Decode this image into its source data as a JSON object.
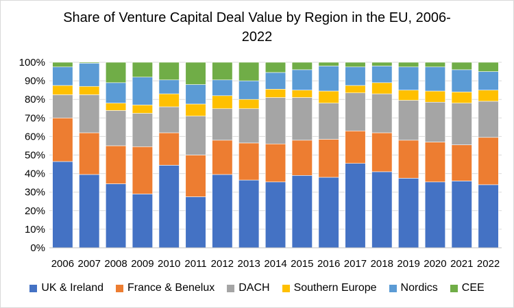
{
  "chart_data": {
    "type": "bar",
    "stacked": true,
    "title_line1": "Share of Venture Capital Deal Value by Region in the EU, 2006-",
    "title_line2": "2022",
    "xlabel": "",
    "ylabel": "",
    "ylim": [
      0,
      100
    ],
    "yticks": [
      "0%",
      "10%",
      "20%",
      "30%",
      "40%",
      "50%",
      "60%",
      "70%",
      "80%",
      "90%",
      "100%"
    ],
    "grid": true,
    "legend_position": "bottom",
    "categories": [
      "2006",
      "2007",
      "2008",
      "2009",
      "2010",
      "2011",
      "2012",
      "2013",
      "2014",
      "2015",
      "2016",
      "2017",
      "2018",
      "2019",
      "2020",
      "2021",
      "2022"
    ],
    "series": [
      {
        "name": "UK & Ireland",
        "color": "#4472C4",
        "values": [
          46.5,
          39.5,
          34.5,
          29,
          44.5,
          27.5,
          39.5,
          36.5,
          35.5,
          39,
          38,
          45.5,
          41,
          37.5,
          35.5,
          36,
          34
        ]
      },
      {
        "name": "France & Benelux",
        "color": "#ED7D31",
        "values": [
          23.5,
          22.5,
          20.5,
          25.5,
          17.5,
          22.5,
          18.5,
          20,
          20.5,
          19,
          20.5,
          17.5,
          21,
          20.5,
          21.5,
          19.5,
          25.5
        ]
      },
      {
        "name": "DACH",
        "color": "#A5A5A5",
        "values": [
          12.5,
          20.5,
          19,
          18,
          14,
          21,
          17,
          18.5,
          25,
          23,
          19.5,
          20.5,
          21,
          21.5,
          21.5,
          22.5,
          19.5
        ]
      },
      {
        "name": "Southern Europe",
        "color": "#FFC000",
        "values": [
          5,
          4.5,
          4,
          4.5,
          7,
          6.5,
          7,
          5,
          4.5,
          4,
          6.5,
          4,
          6,
          5.5,
          6,
          6,
          6
        ]
      },
      {
        "name": "Nordics",
        "color": "#5B9BD5",
        "values": [
          10,
          12.5,
          11,
          15,
          7.5,
          10.5,
          8.5,
          10,
          9,
          11,
          13.5,
          10,
          9,
          12.5,
          13,
          12,
          10
        ]
      },
      {
        "name": "CEE",
        "color": "#70AD47",
        "values": [
          2.5,
          0.5,
          11,
          8,
          9.5,
          12,
          9.5,
          10,
          5.5,
          4,
          2,
          2.5,
          2,
          2.5,
          2.5,
          4,
          5
        ]
      }
    ]
  }
}
